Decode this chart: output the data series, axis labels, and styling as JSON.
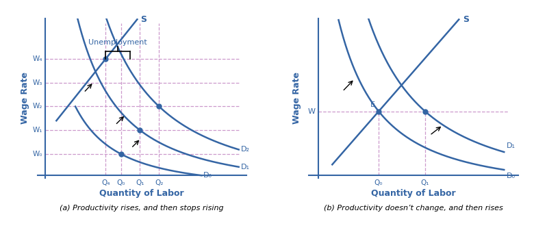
{
  "blue": "#3465a4",
  "pink": "#cc99cc",
  "bg": "#ffffff",
  "panel_a": {
    "title": "(a) Productivity rises, and then stops rising",
    "xlabel": "Quantity of Labor",
    "ylabel": "Wage Rate",
    "wage_labels": [
      "W₀",
      "W₁",
      "W₂",
      "W₃",
      "W₄"
    ],
    "wage_vals": [
      1.5,
      2.5,
      3.5,
      4.5,
      5.5
    ],
    "q_labels": [
      "Q₄",
      "Q₀",
      "Q₁",
      "Q₂"
    ],
    "q_vals": [
      2.8,
      3.2,
      3.7,
      4.2
    ],
    "supply_label": "S",
    "demand_labels": [
      "D₀",
      "D₁",
      "D₂"
    ],
    "points": [
      [
        3.2,
        1.5
      ],
      [
        3.7,
        2.5
      ],
      [
        4.2,
        3.5
      ],
      [
        2.8,
        5.5
      ]
    ]
  },
  "panel_b": {
    "title": "(b) Productivity doesn’t change, and then rises",
    "xlabel": "Quantity of Labor",
    "ylabel": "Wage Rate",
    "wage_labels": [
      "W"
    ],
    "wage_vals": [
      3.0
    ],
    "q_labels": [
      "Q₀",
      "Q₁"
    ],
    "q_vals": [
      2.5,
      3.5
    ],
    "supply_label": "S",
    "demand_labels": [
      "D₀",
      "D₁"
    ],
    "E_label": "E",
    "points": [
      [
        2.5,
        3.0
      ],
      [
        3.5,
        3.0
      ]
    ]
  }
}
